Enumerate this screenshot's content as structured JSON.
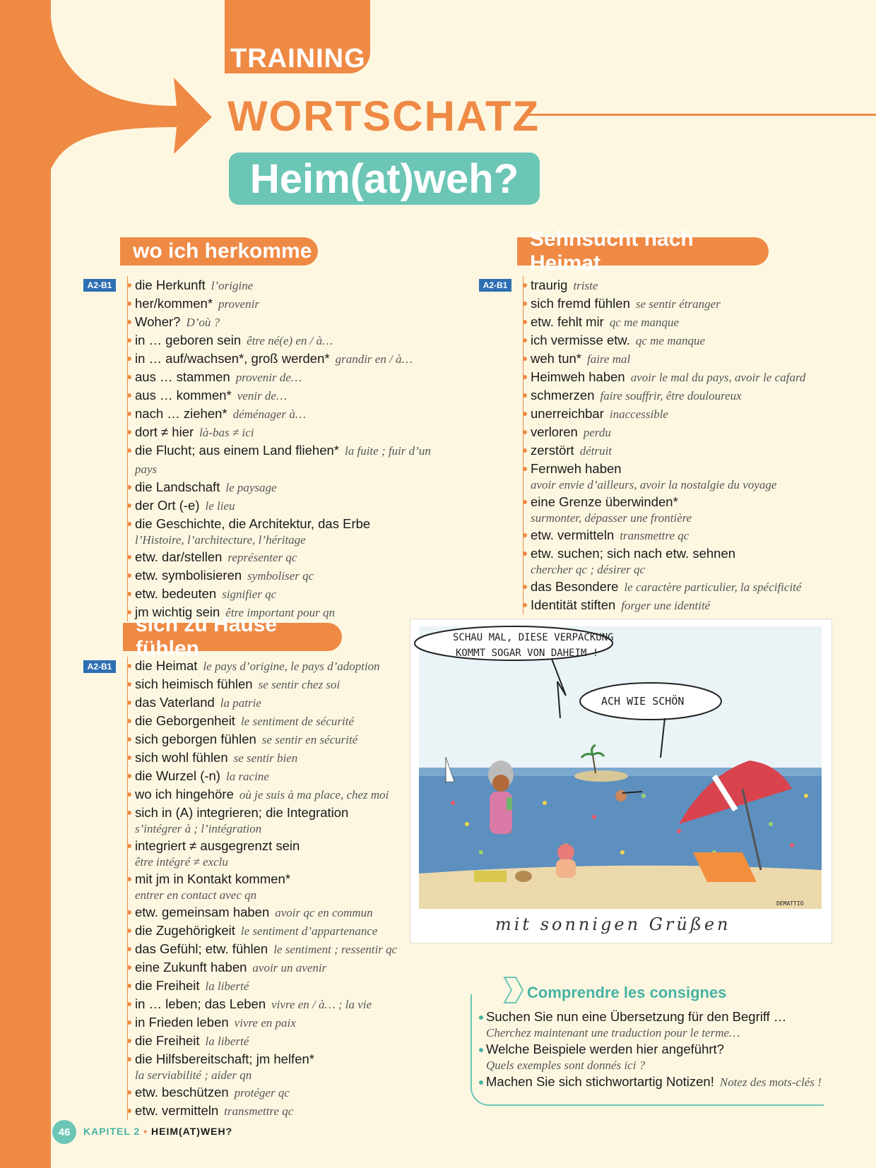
{
  "header": {
    "training": "TRAINING",
    "section": "WORTSCHATZ",
    "title": "Heim(at)weh?"
  },
  "colors": {
    "accent": "#ef8a45",
    "teal": "#6cc6b6",
    "level": "#2d6fb2"
  },
  "sections": {
    "herkomme": {
      "heading": "wo ich herkomme",
      "level": "A2-B1",
      "items": [
        {
          "de": "die Herkunft",
          "fr": "l’origine"
        },
        {
          "de": "her/kommen*",
          "fr": "provenir"
        },
        {
          "de": "Woher?",
          "fr": "D’où ?"
        },
        {
          "de": "in … geboren sein",
          "fr": "être né(e) en / à…"
        },
        {
          "de": "in … auf/wachsen*, groß werden*",
          "fr": "grandir en / à…"
        },
        {
          "de": "aus … stammen",
          "fr": "provenir de…"
        },
        {
          "de": "aus … kommen*",
          "fr": "venir de…"
        },
        {
          "de": "nach … ziehen*",
          "fr": "déménager à…"
        },
        {
          "de": "dort ≠ hier",
          "fr": "là-bas ≠ ici"
        },
        {
          "de": "die Flucht; aus einem Land fliehen*",
          "fr": "la fuite ; fuir d’un pays"
        },
        {
          "de": "die Landschaft",
          "fr": "le paysage"
        },
        {
          "de": "der Ort (-e)",
          "fr": "le lieu"
        },
        {
          "de": "die Geschichte, die Architektur, das Erbe",
          "fr": "l’Histoire, l’architecture, l’héritage",
          "block": true
        },
        {
          "de": "etw. dar/stellen",
          "fr": "représenter qc"
        },
        {
          "de": "etw. symbolisieren",
          "fr": "symboliser qc"
        },
        {
          "de": "etw. bedeuten",
          "fr": "signifier qc"
        },
        {
          "de": "jm wichtig sein",
          "fr": "être important pour qn"
        }
      ]
    },
    "sehnsucht": {
      "heading": "Sehnsucht nach Heimat",
      "level": "A2-B1",
      "items": [
        {
          "de": "traurig",
          "fr": "triste"
        },
        {
          "de": "sich fremd fühlen",
          "fr": "se sentir étranger"
        },
        {
          "de": "etw. fehlt mir",
          "fr": "qc me manque"
        },
        {
          "de": "ich vermisse etw.",
          "fr": "qc me manque"
        },
        {
          "de": "weh tun*",
          "fr": "faire mal"
        },
        {
          "de": "Heimweh haben",
          "fr": "avoir le mal du pays, avoir le cafard"
        },
        {
          "de": "schmerzen",
          "fr": "faire souffrir, être douloureux"
        },
        {
          "de": "unerreichbar",
          "fr": "inaccessible"
        },
        {
          "de": "verloren",
          "fr": "perdu"
        },
        {
          "de": "zerstört",
          "fr": "détruit"
        },
        {
          "de": "Fernweh haben",
          "fr": "avoir envie d’ailleurs, avoir la nostalgie du voyage",
          "block": true
        },
        {
          "de": "eine Grenze überwinden*",
          "fr": "surmonter, dépasser une frontière",
          "block": true
        },
        {
          "de": "etw. vermitteln",
          "fr": "transmettre qc"
        },
        {
          "de": "etw. suchen; sich nach etw. sehnen",
          "fr": "chercher qc ; désirer qc",
          "block": true
        },
        {
          "de": "das Besondere",
          "fr": "le caractère particulier, la spécificité"
        },
        {
          "de": "Identität stiften",
          "fr": "forger une identité"
        }
      ]
    },
    "zuhause": {
      "heading": "sich zu Hause fühlen",
      "level": "A2-B1",
      "items": [
        {
          "de": "die Heimat",
          "fr": "le pays d’origine, le pays d’adoption"
        },
        {
          "de": "sich heimisch fühlen",
          "fr": "se sentir chez soi"
        },
        {
          "de": "das Vaterland",
          "fr": "la patrie"
        },
        {
          "de": "die Geborgenheit",
          "fr": "le sentiment de sécurité"
        },
        {
          "de": "sich geborgen fühlen",
          "fr": "se sentir en sécurité"
        },
        {
          "de": "sich wohl fühlen",
          "fr": "se sentir bien"
        },
        {
          "de": "die Wurzel (-n)",
          "fr": "la racine"
        },
        {
          "de": "wo ich hingehöre",
          "fr": "où je suis à ma place, chez moi"
        },
        {
          "de": "sich in (A) integrieren; die Integration",
          "fr": "s’intégrer à ; l’intégration",
          "block": true
        },
        {
          "de": "integriert ≠ ausgegrenzt sein",
          "fr": "être intégré ≠ exclu",
          "block": true
        },
        {
          "de": "mit jm in Kontakt kommen*",
          "fr": "entrer en contact avec qn",
          "block": true
        },
        {
          "de": "etw. gemeinsam haben",
          "fr": "avoir qc en commun"
        },
        {
          "de": "die Zugehörigkeit",
          "fr": "le sentiment d’appartenance"
        },
        {
          "de": "das Gefühl; etw. fühlen",
          "fr": "le sentiment ; ressentir qc"
        },
        {
          "de": "eine Zukunft haben",
          "fr": "avoir un avenir"
        },
        {
          "de": "die Freiheit",
          "fr": "la liberté"
        },
        {
          "de": "in … leben; das Leben",
          "fr": "vivre en / à… ; la vie"
        },
        {
          "de": "in Frieden leben",
          "fr": "vivre en paix"
        },
        {
          "de": "die Freiheit",
          "fr": "la liberté"
        },
        {
          "de": "die Hilfsbereitschaft; jm helfen*",
          "fr": "la serviabilité ; aider qn",
          "block": true
        },
        {
          "de": "etw. beschützen",
          "fr": "protéger qc"
        },
        {
          "de": "etw. vermitteln",
          "fr": "transmettre qc"
        }
      ]
    }
  },
  "cartoon": {
    "bubble1_line1": "SCHAU MAL, DIESE VERPACKUNG",
    "bubble1_line2": "KOMMT SOGAR VON DAHEIM !",
    "bubble2": "ACH WIE SCHÖN",
    "signature": "DEMATTIO",
    "caption": "mit sonnigen Grüßen"
  },
  "consignes": {
    "title": "Comprendre les consignes",
    "items": [
      {
        "de": "Suchen Sie nun eine Übersetzung für den Begriff …",
        "fr": "Cherchez maintenant une traduction pour le terme…",
        "block": true
      },
      {
        "de": "Welche Beispiele werden hier angeführt?",
        "fr": "Quels exemples sont donnés ici ?",
        "block": true
      },
      {
        "de": "Machen Sie sich stichwortartig Notizen!",
        "fr": "Notez des mots-clés !"
      }
    ]
  },
  "footer": {
    "page": "46",
    "chapter": "KAPITEL 2",
    "sep": "•",
    "topic": "HEIM(AT)WEH?"
  }
}
